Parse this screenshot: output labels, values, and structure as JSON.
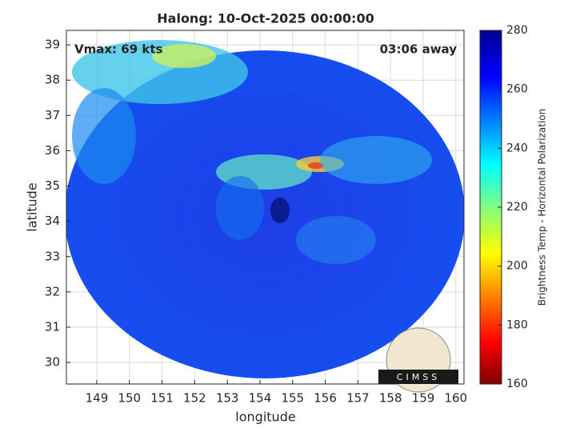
{
  "chart_data": {
    "type": "map",
    "title": "Halong: 10-Oct-2025 00:00:00",
    "annotations": [
      "Vmax: 69 kts",
      "03:06 away"
    ],
    "x_label": "longitude",
    "y_label": "latitude",
    "xlim": [
      148.07,
      160.25
    ],
    "xticks": [
      149,
      150,
      151,
      152,
      153,
      154,
      155,
      156,
      157,
      158,
      159,
      160
    ],
    "ylim": [
      29.39,
      39.41
    ],
    "yticks": [
      30,
      31,
      32,
      33,
      34,
      35,
      36,
      37,
      38,
      39
    ],
    "grid": true,
    "colorbar": {
      "label": "Brightness Temp - Horizontal Polarization",
      "lim": [
        160,
        280
      ],
      "ticks": [
        160,
        180,
        200,
        220,
        240,
        260,
        280
      ]
    },
    "logo": "CIMSS"
  }
}
